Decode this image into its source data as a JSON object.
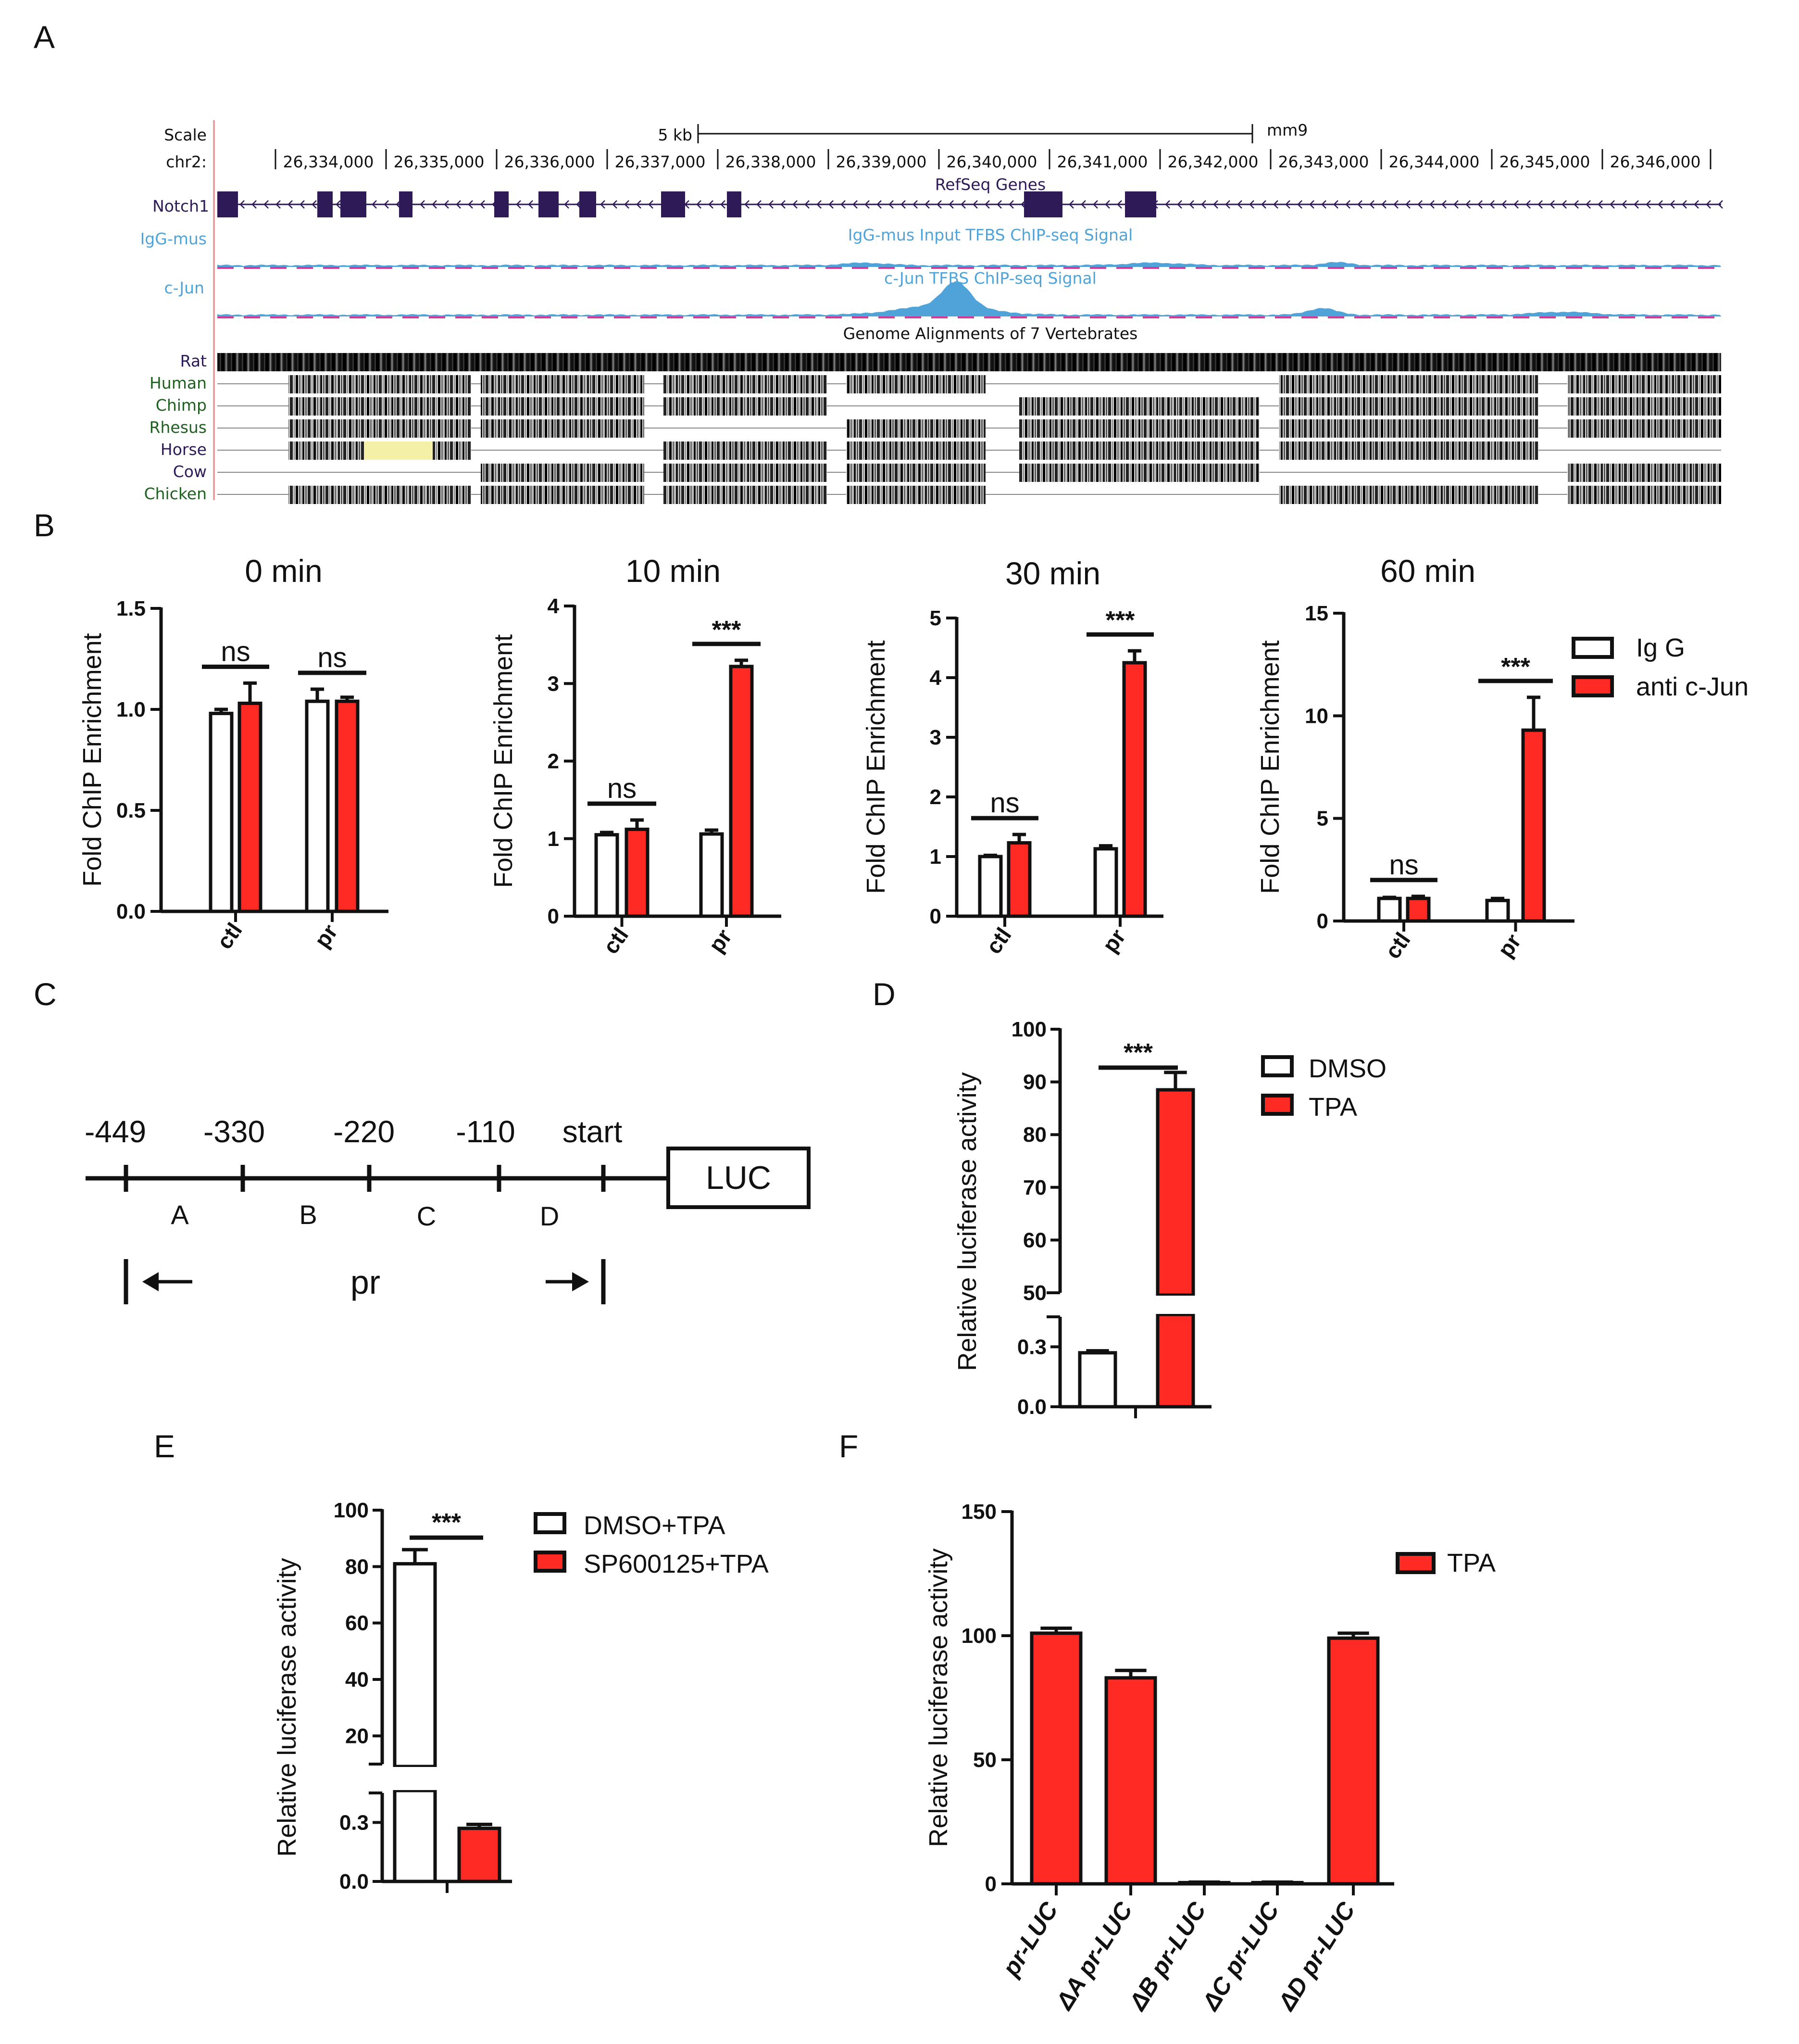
{
  "panel_labels": [
    "A",
    "B",
    "C",
    "D",
    "E",
    "F"
  ],
  "genome_browser": {
    "scale_label": "Scale",
    "scale_bar_label": "5 kb",
    "assembly": "mm9",
    "chrom_label": "chr2:",
    "coordinates": [
      "26,334,000",
      "26,335,000",
      "26,336,000",
      "26,337,000",
      "26,338,000",
      "26,339,000",
      "26,340,000",
      "26,341,000",
      "26,342,000",
      "26,343,000",
      "26,344,000",
      "26,345,000",
      "26,346,000"
    ],
    "gene_track_label": "Notch1",
    "gene_track_title": "RefSeq Genes",
    "track_igg_label": "IgG-mus",
    "track_igg_title": "IgG-mus Input TFBS ChIP-seq Signal",
    "track_cjun_label": "c-Jun",
    "track_cjun_title": "c-Jun TFBS ChIP-seq Signal",
    "alignment_title": "Genome Alignments of 7 Vertebrates",
    "species": [
      "Rat",
      "Human",
      "Chimp",
      "Rhesus",
      "Horse",
      "Cow",
      "Chicken"
    ],
    "colors": {
      "gene": "#2e1a57",
      "chip_signal": "#4fa3d9",
      "gap": "#d6399a",
      "primate_label": "#1f5f1f",
      "rodent_label": "#2e1a57"
    }
  },
  "legend_B": [
    "Ig G",
    "anti c-Jun"
  ],
  "legend_D": [
    "DMSO",
    "TPA"
  ],
  "legend_E": [
    "DMSO+TPA",
    "SP600125+TPA"
  ],
  "legend_F": [
    "TPA"
  ],
  "colors": {
    "control": "#ffffff",
    "treated": "#ff2a23",
    "stroke": "#111111"
  },
  "diagram_C": {
    "positions": [
      "-449",
      "-330",
      "-220",
      "-110",
      "start"
    ],
    "segments": [
      "A",
      "B",
      "C",
      "D"
    ],
    "box_label": "LUC",
    "region_label": "pr"
  },
  "chart_data": [
    {
      "type": "bar",
      "panel": "B",
      "title": "0 min",
      "ylabel": "Fold ChIP Enrichment",
      "ylim": [
        0,
        1.5
      ],
      "yticks": [
        "0.0",
        "0.5",
        "1.0",
        "1.5"
      ],
      "categories": [
        "ctl",
        "pr"
      ],
      "series": [
        {
          "name": "Ig G",
          "values": [
            0.98,
            1.04
          ],
          "errors": [
            0.02,
            0.06
          ]
        },
        {
          "name": "anti c-Jun",
          "values": [
            1.03,
            1.04
          ],
          "errors": [
            0.1,
            0.02
          ]
        }
      ],
      "annotations": [
        "ns",
        "ns"
      ]
    },
    {
      "type": "bar",
      "panel": "B",
      "title": "10 min",
      "ylabel": "Fold ChIP Enrichment",
      "ylim": [
        0,
        4
      ],
      "yticks": [
        "0",
        "1",
        "2",
        "3",
        "4"
      ],
      "categories": [
        "ctl",
        "pr"
      ],
      "series": [
        {
          "name": "Ig G",
          "values": [
            1.05,
            1.06
          ],
          "errors": [
            0.03,
            0.05
          ]
        },
        {
          "name": "anti c-Jun",
          "values": [
            1.12,
            3.22
          ],
          "errors": [
            0.12,
            0.08
          ]
        }
      ],
      "annotations": [
        "ns",
        "***"
      ]
    },
    {
      "type": "bar",
      "panel": "B",
      "title": "30 min",
      "ylabel": "Fold ChIP Enrichment",
      "ylim": [
        0,
        5
      ],
      "yticks": [
        "0",
        "1",
        "2",
        "3",
        "4",
        "5"
      ],
      "categories": [
        "ctl",
        "pr"
      ],
      "series": [
        {
          "name": "Ig G",
          "values": [
            1.0,
            1.13
          ],
          "errors": [
            0.02,
            0.05
          ]
        },
        {
          "name": "anti c-Jun",
          "values": [
            1.23,
            4.25
          ],
          "errors": [
            0.14,
            0.2
          ]
        }
      ],
      "annotations": [
        "ns",
        "***"
      ]
    },
    {
      "type": "bar",
      "panel": "B",
      "title": "60 min",
      "ylabel": "Fold ChIP Enrichment",
      "ylim": [
        0,
        15
      ],
      "yticks": [
        "0",
        "5",
        "10",
        "15"
      ],
      "categories": [
        "ctl",
        "pr"
      ],
      "series": [
        {
          "name": "Ig G",
          "values": [
            1.1,
            1.0
          ],
          "errors": [
            0.05,
            0.1
          ]
        },
        {
          "name": "anti c-Jun",
          "values": [
            1.1,
            9.3
          ],
          "errors": [
            0.1,
            1.6
          ]
        }
      ],
      "annotations": [
        "ns",
        "***"
      ]
    },
    {
      "type": "bar",
      "panel": "D",
      "ylabel": "Relative luciferase activity",
      "yticks_upper": [
        "50",
        "60",
        "70",
        "80",
        "90",
        "100"
      ],
      "yticks_lower": [
        "0.0",
        "0.3"
      ],
      "categories": [
        ""
      ],
      "series": [
        {
          "name": "DMSO",
          "values": [
            0.27
          ],
          "errors": [
            0.01
          ]
        },
        {
          "name": "TPA",
          "values": [
            88.5
          ],
          "errors": [
            3.3
          ]
        }
      ],
      "annotations": [
        "***"
      ]
    },
    {
      "type": "bar",
      "panel": "E",
      "ylabel": "Relative luciferase activity",
      "yticks_upper": [
        "20",
        "40",
        "60",
        "80",
        "100"
      ],
      "yticks_lower": [
        "0.0",
        "0.3"
      ],
      "categories": [
        ""
      ],
      "series": [
        {
          "name": "DMSO+TPA",
          "values": [
            81
          ],
          "errors": [
            5
          ]
        },
        {
          "name": "SP600125+TPA",
          "values": [
            0.27
          ],
          "errors": [
            0.02
          ]
        }
      ],
      "annotations": [
        "***"
      ]
    },
    {
      "type": "bar",
      "panel": "F",
      "ylabel": "Relative luciferase activity",
      "ylim": [
        0,
        150
      ],
      "yticks": [
        "0",
        "50",
        "100",
        "150"
      ],
      "categories": [
        "pr-LUC",
        "ΔA pr-LUC",
        "ΔB pr-LUC",
        "ΔC pr-LUC",
        "ΔD pr-LUC"
      ],
      "series": [
        {
          "name": "TPA",
          "values": [
            101,
            83,
            0.5,
            0.5,
            99
          ],
          "errors": [
            2,
            3,
            0.2,
            0.2,
            2
          ]
        }
      ]
    }
  ]
}
